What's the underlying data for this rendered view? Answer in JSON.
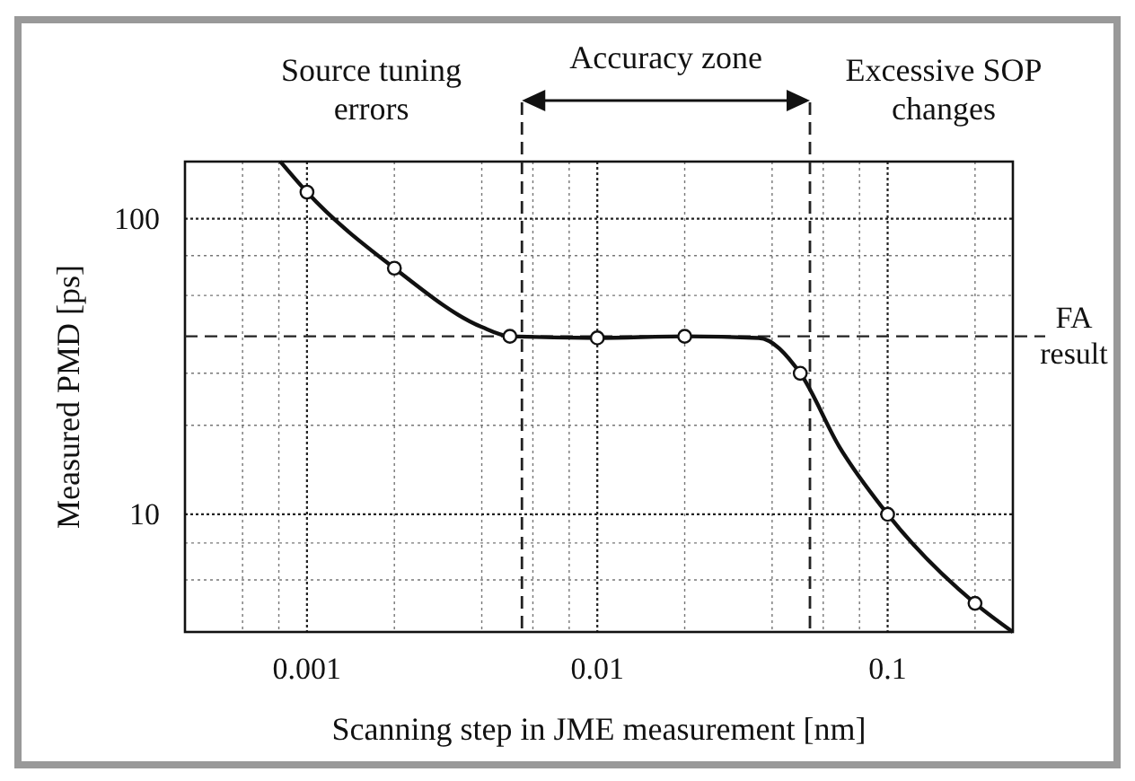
{
  "chart_data": {
    "type": "line",
    "xlabel": "Scanning step in JME measurement [nm]",
    "ylabel": "Measured PMD [ps]",
    "log": "xy",
    "xlim": [
      0.00038,
      0.27
    ],
    "ylim": [
      4,
      156
    ],
    "xticks": [
      {
        "value": 0.0006,
        "label": null
      },
      {
        "value": 0.0008,
        "label": null
      },
      0.001,
      {
        "value": 0.002,
        "label": null
      },
      {
        "value": 0.004,
        "label": null
      },
      {
        "value": 0.006,
        "label": null
      },
      {
        "value": 0.008,
        "label": null
      },
      0.01,
      {
        "value": 0.02,
        "label": null
      },
      {
        "value": 0.04,
        "label": null
      },
      {
        "value": 0.06,
        "label": null
      },
      {
        "value": 0.08,
        "label": null
      },
      0.1,
      {
        "value": 0.2,
        "label": null
      }
    ],
    "yticks": [
      {
        "value": 6,
        "label": null
      },
      {
        "value": 8,
        "label": null
      },
      10,
      {
        "value": 20,
        "label": null
      },
      {
        "value": 30,
        "label": null
      },
      {
        "value": 55,
        "label": null
      },
      {
        "value": 75,
        "label": null
      },
      100
    ],
    "grid": true,
    "series": [
      {
        "color": "#111111",
        "marker": "none",
        "x": [
          0.00081,
          0.001,
          0.002,
          0.004,
          0.005,
          0.01,
          0.02,
          0.036,
          0.05,
          0.068,
          0.1,
          0.2,
          0.27
        ],
        "values": [
          156,
          123,
          68,
          43,
          40,
          39.5,
          40,
          39.5,
          30,
          17,
          10,
          5,
          4
        ]
      },
      {
        "type": "scatter",
        "color": "#111111",
        "marker": "circle",
        "x": [
          0.001,
          0.002,
          0.005,
          0.01,
          0.02,
          0.05,
          0.1,
          0.2
        ],
        "values": [
          123,
          68,
          40,
          39.5,
          40,
          30,
          10,
          5
        ]
      }
    ],
    "ref_lines": [
      {
        "axis": "y",
        "value": 40,
        "label": "FA result",
        "line_style": "dashed"
      },
      {
        "axis": "x",
        "value": 0.0055,
        "line_style": "dashed"
      },
      {
        "axis": "x",
        "value": 0.054,
        "line_style": "dashed"
      }
    ],
    "annotations": [
      "Source tuning errors",
      "Accuracy zone",
      "Excessive SOP changes"
    ]
  }
}
